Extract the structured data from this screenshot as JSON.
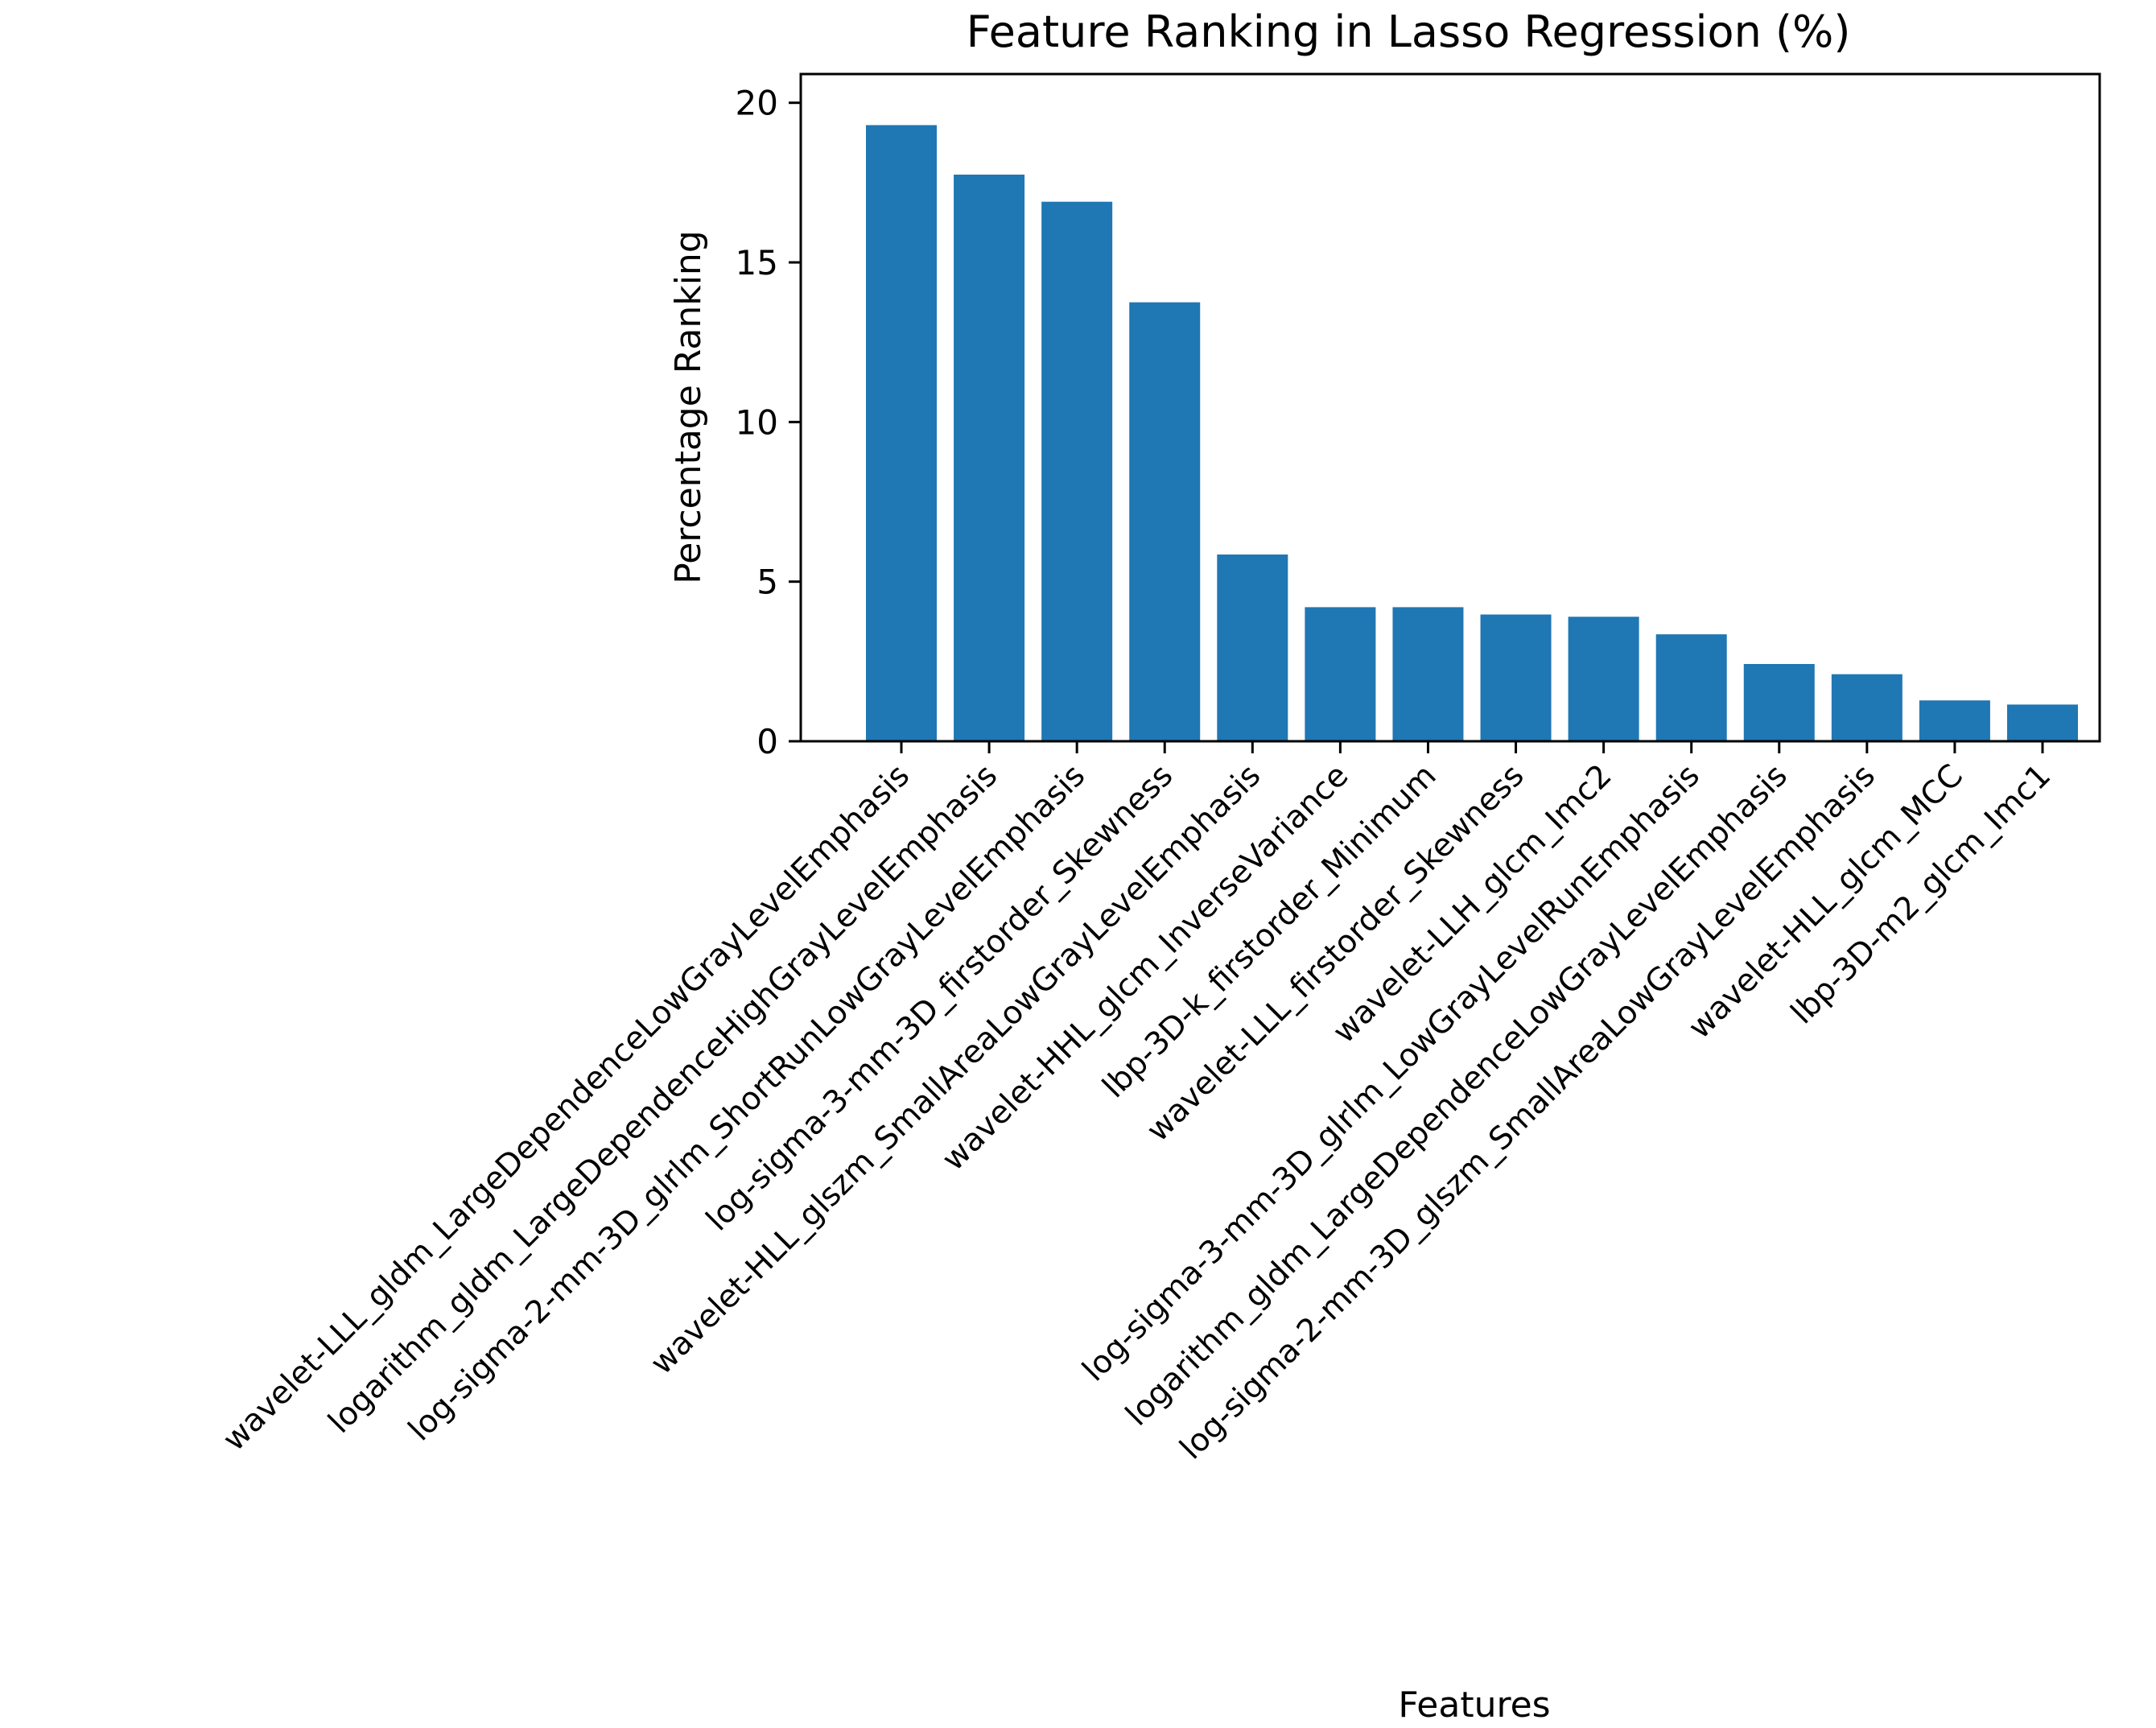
{
  "chart_data": {
    "type": "bar",
    "title": "Feature Ranking in Lasso Regression (%)",
    "xlabel": "Features",
    "ylabel": "Percentage Ranking",
    "ylim": [
      0,
      20
    ],
    "yticks": [
      0,
      5,
      10,
      15,
      20
    ],
    "grid": false,
    "bar_color": "#1f77b4",
    "categories": [
      "wavelet-LLL_gldm_LargeDependenceLowGrayLevelEmphasis",
      "logarithm_gldm_LargeDependenceHighGrayLevelEmphasis",
      "log-sigma-2-mm-3D_glrlm_ShortRunLowGrayLevelEmphasis",
      "log-sigma-3-mm-3D_firstorder_Skewness",
      "wavelet-HLL_glszm_SmallAreaLowGrayLevelEmphasis",
      "wavelet-HHL_glcm_InverseVariance",
      "lbp-3D-k_firstorder_Minimum",
      "wavelet-LLL_firstorder_Skewness",
      "wavelet-LLH_glcm_Imc2",
      "log-sigma-3-mm-3D_glrlm_LowGrayLevelRunEmphasis",
      "logarithm_gldm_LargeDependenceLowGrayLevelEmphasis",
      "log-sigma-2-mm-3D_glszm_SmallAreaLowGrayLevelEmphasis",
      "wavelet-HLL_glcm_MCC",
      "lbp-3D-m2_glcm_Imc1"
    ],
    "values": [
      19.3,
      17.75,
      16.9,
      13.75,
      5.85,
      4.2,
      4.2,
      3.97,
      3.9,
      3.35,
      2.42,
      2.1,
      1.28,
      1.15
    ]
  }
}
